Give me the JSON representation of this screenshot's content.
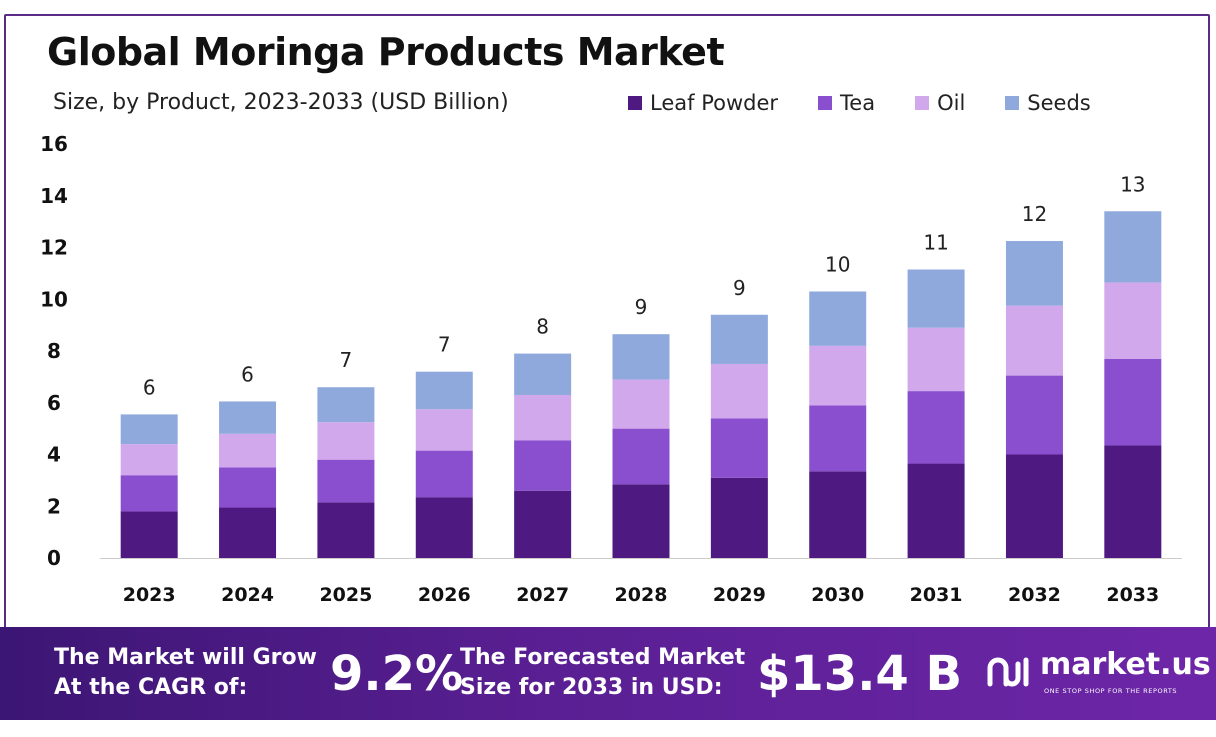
{
  "title": "Global Moringa Products Market",
  "subtitle": "Size, by Product, 2023-2033 (USD Billion)",
  "legend": [
    {
      "label": "Leaf Powder",
      "color": "#4e1a82"
    },
    {
      "label": "Tea",
      "color": "#8a4fce"
    },
    {
      "label": "Oil",
      "color": "#d2a8ec"
    },
    {
      "label": "Seeds",
      "color": "#8fa9dc"
    }
  ],
  "chart_data": {
    "type": "bar",
    "stacked": true,
    "categories": [
      "2023",
      "2024",
      "2025",
      "2026",
      "2027",
      "2028",
      "2029",
      "2030",
      "2031",
      "2032",
      "2033"
    ],
    "series": [
      {
        "name": "Leaf Powder",
        "color": "#4e1a82",
        "values": [
          1.8,
          1.95,
          2.15,
          2.35,
          2.6,
          2.85,
          3.1,
          3.35,
          3.65,
          4.0,
          4.35
        ]
      },
      {
        "name": "Tea",
        "color": "#8a4fce",
        "values": [
          1.4,
          1.55,
          1.65,
          1.8,
          1.95,
          2.15,
          2.3,
          2.55,
          2.8,
          3.05,
          3.35
        ]
      },
      {
        "name": "Oil",
        "color": "#d2a8ec",
        "values": [
          1.2,
          1.3,
          1.45,
          1.6,
          1.75,
          1.9,
          2.1,
          2.3,
          2.45,
          2.7,
          2.95
        ]
      },
      {
        "name": "Seeds",
        "color": "#8fa9dc",
        "values": [
          1.15,
          1.25,
          1.35,
          1.45,
          1.6,
          1.75,
          1.9,
          2.1,
          2.25,
          2.5,
          2.75
        ]
      }
    ],
    "data_labels": [
      "6",
      "6",
      "7",
      "7",
      "8",
      "9",
      "9",
      "10",
      "11",
      "12",
      "13"
    ],
    "yticks": [
      "0",
      "2",
      "4",
      "6",
      "8",
      "10",
      "12",
      "14",
      "16"
    ],
    "ylim": [
      0,
      16
    ],
    "grid": false,
    "legend_position": "top-right"
  },
  "banner": {
    "cagr_line1": "The Market will Grow",
    "cagr_line2": "At the CAGR of:",
    "cagr_value": "9.2%",
    "forecast_line1": "The Forecasted Market",
    "forecast_line2": "Size for 2033 in USD:",
    "forecast_value": "$13.4 B",
    "brand_name": "market.us",
    "brand_tagline": "ONE STOP SHOP FOR THE REPORTS"
  }
}
